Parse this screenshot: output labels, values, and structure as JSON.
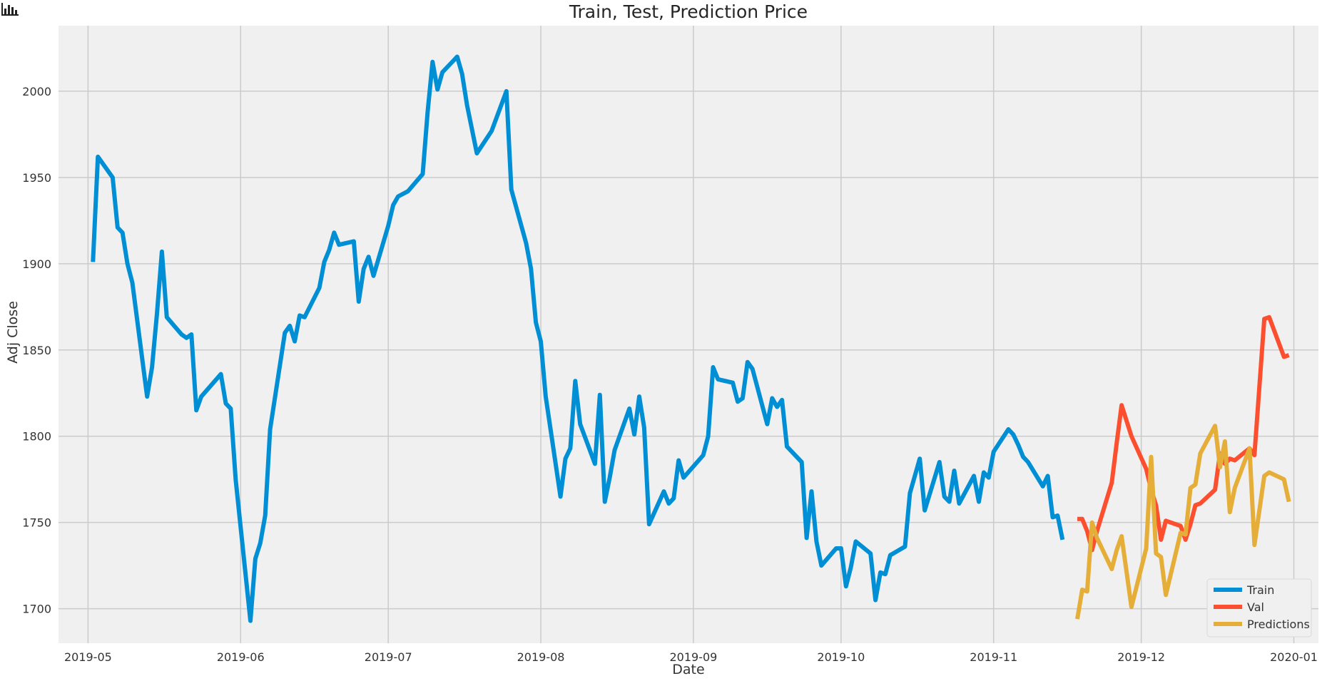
{
  "toolbar": {
    "icon": "bar-chart-icon"
  },
  "chart_data": {
    "type": "line",
    "title": "Train, Test, Prediction Price",
    "xlabel": "Date",
    "ylabel": "Adj Close",
    "xlim": [
      "2019-04-25",
      "2020-01-06"
    ],
    "ylim": [
      1680,
      2038
    ],
    "grid": true,
    "background": "#f0f0f0",
    "grid_color": "#cbcbcb",
    "legend_position": "bottom-right",
    "x_ticks": [
      "2019-05",
      "2019-06",
      "2019-07",
      "2019-08",
      "2019-09",
      "2019-10",
      "2019-11",
      "2019-12",
      "2020-01"
    ],
    "x_tick_dates": [
      "2019-05-01",
      "2019-06-01",
      "2019-07-01",
      "2019-08-01",
      "2019-09-01",
      "2019-10-01",
      "2019-11-01",
      "2019-12-01",
      "2020-01-01"
    ],
    "y_ticks": [
      1700,
      1750,
      1800,
      1850,
      1900,
      1950,
      2000
    ],
    "series": [
      {
        "name": "Train",
        "color": "#008fd5",
        "points": [
          [
            "2019-05-02",
            1901
          ],
          [
            "2019-05-03",
            1962
          ],
          [
            "2019-05-06",
            1950
          ],
          [
            "2019-05-07",
            1921
          ],
          [
            "2019-05-08",
            1918
          ],
          [
            "2019-05-09",
            1900
          ],
          [
            "2019-05-10",
            1889
          ],
          [
            "2019-05-13",
            1823
          ],
          [
            "2019-05-14",
            1840
          ],
          [
            "2019-05-15",
            1871
          ],
          [
            "2019-05-16",
            1907
          ],
          [
            "2019-05-17",
            1869
          ],
          [
            "2019-05-20",
            1859
          ],
          [
            "2019-05-21",
            1857
          ],
          [
            "2019-05-22",
            1859
          ],
          [
            "2019-05-23",
            1815
          ],
          [
            "2019-05-24",
            1823
          ],
          [
            "2019-05-28",
            1836
          ],
          [
            "2019-05-29",
            1819
          ],
          [
            "2019-05-30",
            1816
          ],
          [
            "2019-05-31",
            1775
          ],
          [
            "2019-06-03",
            1693
          ],
          [
            "2019-06-04",
            1729
          ],
          [
            "2019-06-05",
            1738
          ],
          [
            "2019-06-06",
            1754
          ],
          [
            "2019-06-07",
            1804
          ],
          [
            "2019-06-10",
            1860
          ],
          [
            "2019-06-11",
            1864
          ],
          [
            "2019-06-12",
            1855
          ],
          [
            "2019-06-13",
            1870
          ],
          [
            "2019-06-14",
            1869
          ],
          [
            "2019-06-17",
            1886
          ],
          [
            "2019-06-18",
            1901
          ],
          [
            "2019-06-19",
            1908
          ],
          [
            "2019-06-20",
            1918
          ],
          [
            "2019-06-21",
            1911
          ],
          [
            "2019-06-24",
            1913
          ],
          [
            "2019-06-25",
            1878
          ],
          [
            "2019-06-26",
            1897
          ],
          [
            "2019-06-27",
            1904
          ],
          [
            "2019-06-28",
            1893
          ],
          [
            "2019-07-01",
            1922
          ],
          [
            "2019-07-02",
            1934
          ],
          [
            "2019-07-03",
            1939
          ],
          [
            "2019-07-05",
            1942
          ],
          [
            "2019-07-08",
            1952
          ],
          [
            "2019-07-09",
            1988
          ],
          [
            "2019-07-10",
            2017
          ],
          [
            "2019-07-11",
            2001
          ],
          [
            "2019-07-12",
            2011
          ],
          [
            "2019-07-15",
            2020
          ],
          [
            "2019-07-16",
            2010
          ],
          [
            "2019-07-17",
            1992
          ],
          [
            "2019-07-19",
            1964
          ],
          [
            "2019-07-22",
            1977
          ],
          [
            "2019-07-25",
            2000
          ],
          [
            "2019-07-26",
            1943
          ],
          [
            "2019-07-29",
            1912
          ],
          [
            "2019-07-30",
            1897
          ],
          [
            "2019-07-31",
            1866
          ],
          [
            "2019-08-01",
            1855
          ],
          [
            "2019-08-02",
            1823
          ],
          [
            "2019-08-05",
            1765
          ],
          [
            "2019-08-06",
            1787
          ],
          [
            "2019-08-07",
            1793
          ],
          [
            "2019-08-08",
            1832
          ],
          [
            "2019-08-09",
            1807
          ],
          [
            "2019-08-12",
            1784
          ],
          [
            "2019-08-13",
            1824
          ],
          [
            "2019-08-14",
            1762
          ],
          [
            "2019-08-15",
            1776
          ],
          [
            "2019-08-16",
            1792
          ],
          [
            "2019-08-19",
            1816
          ],
          [
            "2019-08-20",
            1801
          ],
          [
            "2019-08-21",
            1823
          ],
          [
            "2019-08-22",
            1805
          ],
          [
            "2019-08-23",
            1749
          ],
          [
            "2019-08-26",
            1768
          ],
          [
            "2019-08-27",
            1761
          ],
          [
            "2019-08-28",
            1764
          ],
          [
            "2019-08-29",
            1786
          ],
          [
            "2019-08-30",
            1776
          ],
          [
            "2019-09-03",
            1789
          ],
          [
            "2019-09-04",
            1800
          ],
          [
            "2019-09-05",
            1840
          ],
          [
            "2019-09-06",
            1833
          ],
          [
            "2019-09-09",
            1831
          ],
          [
            "2019-09-10",
            1820
          ],
          [
            "2019-09-11",
            1822
          ],
          [
            "2019-09-12",
            1843
          ],
          [
            "2019-09-13",
            1839
          ],
          [
            "2019-09-16",
            1807
          ],
          [
            "2019-09-17",
            1822
          ],
          [
            "2019-09-18",
            1817
          ],
          [
            "2019-09-19",
            1821
          ],
          [
            "2019-09-20",
            1794
          ],
          [
            "2019-09-23",
            1785
          ],
          [
            "2019-09-24",
            1741
          ],
          [
            "2019-09-25",
            1768
          ],
          [
            "2019-09-26",
            1739
          ],
          [
            "2019-09-27",
            1725
          ],
          [
            "2019-09-30",
            1735
          ],
          [
            "2019-10-01",
            1735
          ],
          [
            "2019-10-02",
            1713
          ],
          [
            "2019-10-03",
            1724
          ],
          [
            "2019-10-04",
            1739
          ],
          [
            "2019-10-07",
            1732
          ],
          [
            "2019-10-08",
            1705
          ],
          [
            "2019-10-09",
            1721
          ],
          [
            "2019-10-10",
            1720
          ],
          [
            "2019-10-11",
            1731
          ],
          [
            "2019-10-14",
            1736
          ],
          [
            "2019-10-15",
            1767
          ],
          [
            "2019-10-16",
            1777
          ],
          [
            "2019-10-17",
            1787
          ],
          [
            "2019-10-18",
            1757
          ],
          [
            "2019-10-21",
            1785
          ],
          [
            "2019-10-22",
            1765
          ],
          [
            "2019-10-23",
            1762
          ],
          [
            "2019-10-24",
            1780
          ],
          [
            "2019-10-25",
            1761
          ],
          [
            "2019-10-28",
            1777
          ],
          [
            "2019-10-29",
            1762
          ],
          [
            "2019-10-30",
            1779
          ],
          [
            "2019-10-31",
            1776
          ],
          [
            "2019-11-01",
            1791
          ],
          [
            "2019-11-04",
            1804
          ],
          [
            "2019-11-05",
            1801
          ],
          [
            "2019-11-06",
            1795
          ],
          [
            "2019-11-07",
            1788
          ],
          [
            "2019-11-08",
            1785
          ],
          [
            "2019-11-11",
            1771
          ],
          [
            "2019-11-12",
            1777
          ],
          [
            "2019-11-13",
            1753
          ],
          [
            "2019-11-14",
            1754
          ],
          [
            "2019-11-15",
            1740
          ]
        ]
      },
      {
        "name": "Val",
        "color": "#fc4f30",
        "points": [
          [
            "2019-11-18",
            1752
          ],
          [
            "2019-11-19",
            1752
          ],
          [
            "2019-11-20",
            1745
          ],
          [
            "2019-11-21",
            1734
          ],
          [
            "2019-11-22",
            1745
          ],
          [
            "2019-11-25",
            1773
          ],
          [
            "2019-11-26",
            1796
          ],
          [
            "2019-11-27",
            1818
          ],
          [
            "2019-11-29",
            1800
          ],
          [
            "2019-12-02",
            1781
          ],
          [
            "2019-12-03",
            1769
          ],
          [
            "2019-12-04",
            1760
          ],
          [
            "2019-12-05",
            1740
          ],
          [
            "2019-12-06",
            1751
          ],
          [
            "2019-12-09",
            1748
          ],
          [
            "2019-12-10",
            1740
          ],
          [
            "2019-12-11",
            1749
          ],
          [
            "2019-12-12",
            1760
          ],
          [
            "2019-12-13",
            1761
          ],
          [
            "2019-12-16",
            1769
          ],
          [
            "2019-12-17",
            1790
          ],
          [
            "2019-12-18",
            1784
          ],
          [
            "2019-12-19",
            1787
          ],
          [
            "2019-12-20",
            1786
          ],
          [
            "2019-12-23",
            1793
          ],
          [
            "2019-12-24",
            1789
          ],
          [
            "2019-12-26",
            1868
          ],
          [
            "2019-12-27",
            1869
          ],
          [
            "2019-12-30",
            1846
          ],
          [
            "2019-12-31",
            1847
          ]
        ]
      },
      {
        "name": "Predictions",
        "color": "#e5ae38",
        "points": [
          [
            "2019-11-18",
            1694
          ],
          [
            "2019-11-19",
            1711
          ],
          [
            "2019-11-20",
            1710
          ],
          [
            "2019-11-21",
            1750
          ],
          [
            "2019-11-22",
            1741
          ],
          [
            "2019-11-25",
            1723
          ],
          [
            "2019-11-26",
            1734
          ],
          [
            "2019-11-27",
            1742
          ],
          [
            "2019-11-29",
            1701
          ],
          [
            "2019-12-02",
            1735
          ],
          [
            "2019-12-03",
            1788
          ],
          [
            "2019-12-04",
            1732
          ],
          [
            "2019-12-05",
            1730
          ],
          [
            "2019-12-06",
            1708
          ],
          [
            "2019-12-09",
            1744
          ],
          [
            "2019-12-10",
            1743
          ],
          [
            "2019-12-11",
            1770
          ],
          [
            "2019-12-12",
            1772
          ],
          [
            "2019-12-13",
            1790
          ],
          [
            "2019-12-16",
            1806
          ],
          [
            "2019-12-17",
            1782
          ],
          [
            "2019-12-18",
            1797
          ],
          [
            "2019-12-19",
            1756
          ],
          [
            "2019-12-20",
            1770
          ],
          [
            "2019-12-23",
            1793
          ],
          [
            "2019-12-24",
            1737
          ],
          [
            "2019-12-26",
            1777
          ],
          [
            "2019-12-27",
            1779
          ],
          [
            "2019-12-30",
            1775
          ],
          [
            "2019-12-31",
            1762
          ]
        ]
      }
    ]
  }
}
